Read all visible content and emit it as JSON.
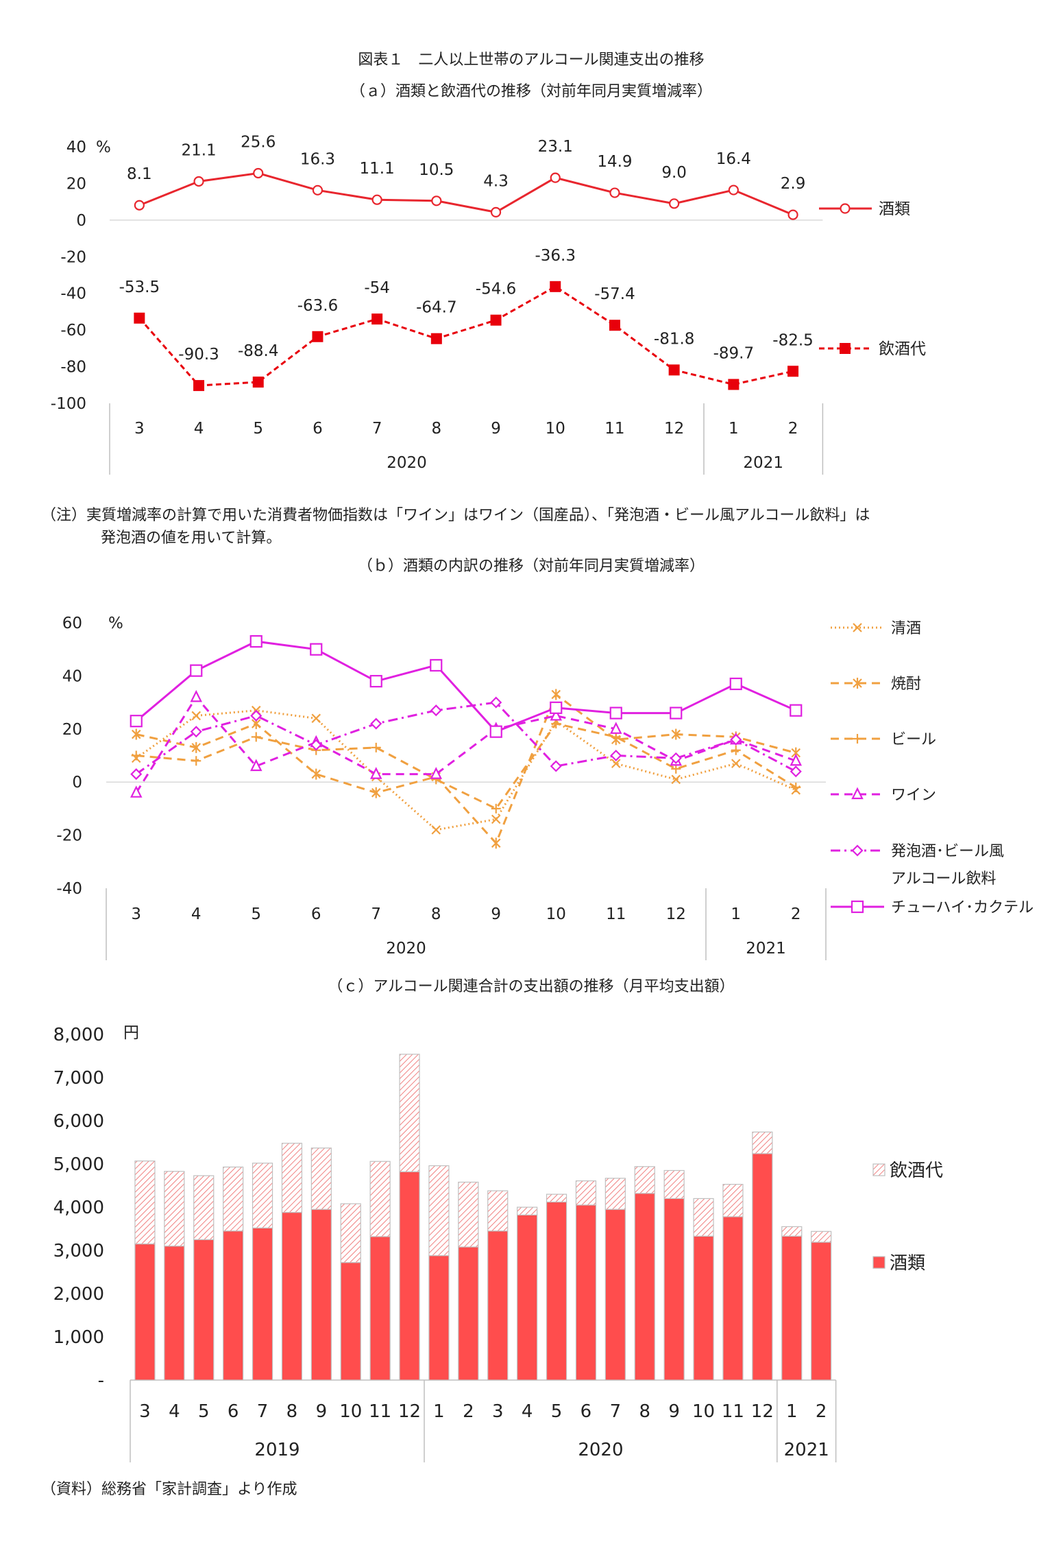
{
  "figure": {
    "title": "図表１　二人以上世帯のアルコール関連支出の推移",
    "note_line1": "（注）実質増減率の計算で用いた消費者物価指数は「ワイン」はワイン（国産品）、「発泡酒・ビール風アルコール飲料」は",
    "note_line2": "発泡酒の値を用いて計算。",
    "source": "（資料）総務省「家計調査」より作成"
  },
  "chart_data": [
    {
      "id": "a",
      "type": "line",
      "title": "（ａ）酒類と飲酒代の推移（対前年同月実質増減率）",
      "unit": "%",
      "categories": [
        "3",
        "4",
        "5",
        "6",
        "7",
        "8",
        "9",
        "10",
        "11",
        "12",
        "1",
        "2"
      ],
      "year_groups": [
        {
          "label": "2020",
          "count": 10
        },
        {
          "label": "2021",
          "count": 2
        }
      ],
      "ylim": [
        -100,
        40
      ],
      "yticks": [
        40,
        20,
        0,
        -20,
        -40,
        -60,
        -80,
        -100
      ],
      "series": [
        {
          "name": "酒類",
          "color": "#e8262e",
          "marker": "circle-open",
          "dash": "solid",
          "values": [
            8.1,
            21.1,
            25.6,
            16.3,
            11.1,
            10.5,
            4.3,
            23.1,
            14.9,
            9.0,
            16.4,
            2.9
          ],
          "labels": [
            "8.1",
            "21.1",
            "25.6",
            "16.3",
            "11.1",
            "10.5",
            "4.3",
            "23.1",
            "14.9",
            "9.0",
            "16.4",
            "2.9"
          ]
        },
        {
          "name": "飲酒代",
          "color": "#e8000b",
          "marker": "square-filled",
          "dash": "dashed",
          "values": [
            -53.5,
            -90.3,
            -88.4,
            -63.6,
            -54,
            -64.7,
            -54.6,
            -36.3,
            -57.4,
            -81.8,
            -89.7,
            -82.5
          ],
          "labels": [
            "-53.5",
            "-90.3",
            "-88.4",
            "-63.6",
            "-54",
            "-64.7",
            "-54.6",
            "-36.3",
            "-57.4",
            "-81.8",
            "-89.7",
            "-82.5"
          ]
        }
      ]
    },
    {
      "id": "b",
      "type": "line",
      "title": "（ｂ）酒類の内訳の推移（対前年同月実質増減率）",
      "unit": "%",
      "categories": [
        "3",
        "4",
        "5",
        "6",
        "7",
        "8",
        "9",
        "10",
        "11",
        "12",
        "1",
        "2"
      ],
      "year_groups": [
        {
          "label": "2020",
          "count": 10
        },
        {
          "label": "2021",
          "count": 2
        }
      ],
      "ylim": [
        -40,
        60
      ],
      "yticks": [
        60,
        40,
        20,
        0,
        -20,
        -40
      ],
      "series": [
        {
          "name": "清酒",
          "color": "#f0a040",
          "marker": "x",
          "dash": "dotted",
          "values": [
            9,
            25,
            27,
            24,
            2,
            -18,
            -14,
            23,
            7,
            1,
            7,
            -3
          ]
        },
        {
          "name": "焼酎",
          "color": "#f0a040",
          "marker": "asterisk",
          "dash": "dash-long",
          "values": [
            18,
            13,
            22,
            3,
            -4,
            2,
            -23,
            33,
            16,
            18,
            17,
            11
          ]
        },
        {
          "name": "ビール",
          "color": "#f0a040",
          "marker": "plus",
          "dash": "dash-long",
          "values": [
            10,
            8,
            17,
            12,
            13,
            1,
            -10,
            22,
            17,
            5,
            12,
            -2
          ]
        },
        {
          "name": "ワイン",
          "color": "#e020e0",
          "marker": "triangle-open",
          "dash": "dash-long",
          "values": [
            -4,
            32,
            6,
            15,
            3,
            3,
            20,
            25,
            20,
            8,
            16,
            8
          ]
        },
        {
          "name": "発泡酒･ビール風アルコール飲料",
          "name_line1": "発泡酒･ビール風",
          "name_line2": "アルコール飲料",
          "color": "#e020e0",
          "marker": "diamond-open",
          "dash": "dash-dot",
          "values": [
            3,
            19,
            25,
            14,
            22,
            27,
            30,
            6,
            10,
            9,
            16,
            4
          ]
        },
        {
          "name": "チューハイ･カクテル",
          "color": "#e020e0",
          "marker": "square-open",
          "dash": "solid",
          "values": [
            23,
            42,
            53,
            50,
            38,
            44,
            19,
            28,
            26,
            26,
            37,
            27
          ]
        }
      ]
    },
    {
      "id": "c",
      "type": "bar",
      "stacked": true,
      "title": "（ｃ）アルコール関連合計の支出額の推移（月平均支出額）",
      "unit": "円",
      "categories": [
        "3",
        "4",
        "5",
        "6",
        "7",
        "8",
        "9",
        "10",
        "11",
        "12",
        "1",
        "2",
        "3",
        "4",
        "5",
        "6",
        "7",
        "8",
        "9",
        "10",
        "11",
        "12",
        "1",
        "2"
      ],
      "year_groups": [
        {
          "label": "2019",
          "count": 10
        },
        {
          "label": "2020",
          "count": 12
        },
        {
          "label": "2021",
          "count": 2
        }
      ],
      "ylim": [
        0,
        8000
      ],
      "yticks": [
        "8,000",
        "7,000",
        "6,000",
        "5,000",
        "4,000",
        "3,000",
        "2,000",
        "1,000",
        "-"
      ],
      "series": [
        {
          "name": "酒類",
          "color": "#ff4d4d",
          "values": [
            3150,
            3100,
            3250,
            3450,
            3520,
            3880,
            3950,
            2720,
            3320,
            4820,
            2880,
            3080,
            3450,
            3820,
            4120,
            4050,
            3950,
            4320,
            4200,
            3330,
            3780,
            5240,
            3330,
            3190
          ]
        },
        {
          "name": "飲酒代",
          "color": "#f08080",
          "pattern": "hatched",
          "values": [
            1920,
            1730,
            1480,
            1480,
            1500,
            1600,
            1420,
            1360,
            1740,
            2720,
            2080,
            1500,
            930,
            180,
            180,
            560,
            720,
            620,
            650,
            870,
            750,
            500,
            220,
            250
          ]
        }
      ]
    }
  ]
}
